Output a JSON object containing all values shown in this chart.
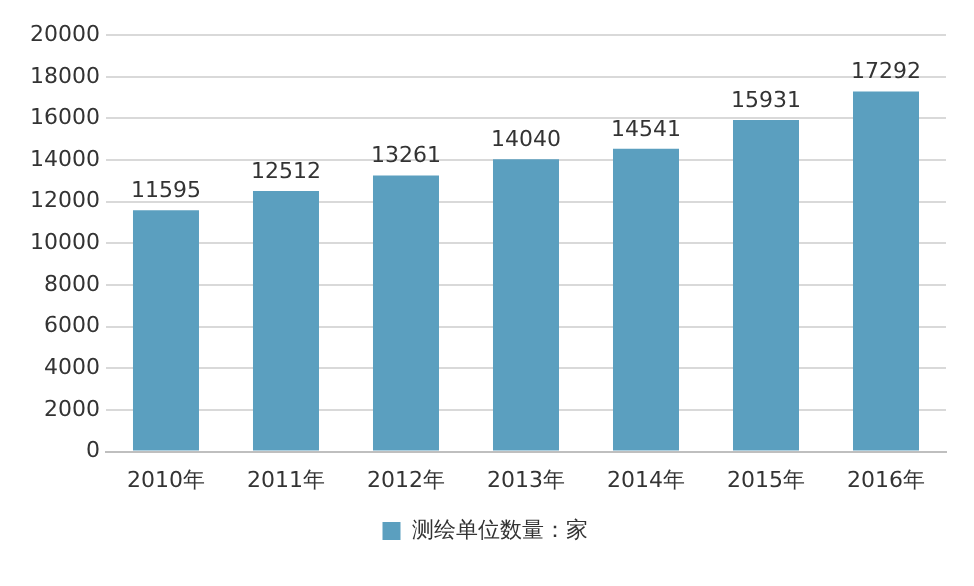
{
  "chart_data": {
    "type": "bar",
    "categories": [
      "2010年",
      "2011年",
      "2012年",
      "2013年",
      "2014年",
      "2015年",
      "2016年"
    ],
    "series": [
      {
        "name": "测绘单位数量：家",
        "color": "#5b9fbf",
        "values": [
          11595,
          12512,
          13261,
          14040,
          14541,
          15931,
          17292
        ]
      }
    ],
    "ylim": [
      0,
      20000
    ],
    "yticks": [
      0,
      2000,
      4000,
      6000,
      8000,
      10000,
      12000,
      14000,
      16000,
      18000,
      20000
    ],
    "grid": "y",
    "legend": "bottom",
    "data_labels": true
  }
}
